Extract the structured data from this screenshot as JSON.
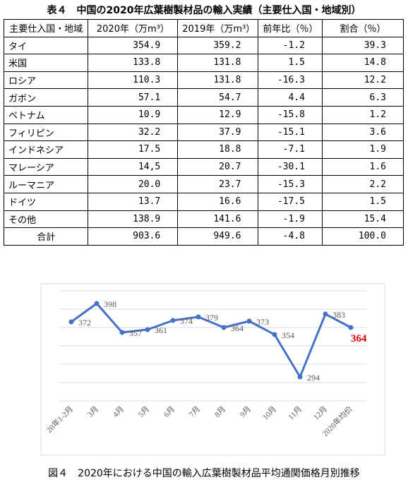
{
  "table": {
    "title": "表４　中国の2020年広葉樹製材品の輸入実績（主要仕入国・地域別）",
    "header": [
      "主要仕入国・地域",
      "2020年（万m³）",
      "2019年（万m³）",
      "前年比（％）",
      "割合（％）"
    ],
    "rows": [
      [
        "タイ",
        "354.9",
        "359.2",
        "-1.2",
        "39.3"
      ],
      [
        "米国",
        "133.8",
        "131.8",
        "1.5",
        "14.8"
      ],
      [
        "ロシア",
        "110.3",
        "131.8",
        "-16.3",
        "12.2"
      ],
      [
        "ガボン",
        "57.1",
        "54.7",
        "4.4",
        "6.3"
      ],
      [
        "ベトナム",
        "10.9",
        "12.9",
        "-15.8",
        "1.2"
      ],
      [
        "フィリピン",
        "32.2",
        "37.9",
        "-15.1",
        "3.6"
      ],
      [
        "インドネシア",
        "17.5",
        "18.8",
        "-7.1",
        "1.9"
      ],
      [
        "マレーシア",
        "14,5",
        "20.7",
        "-30.1",
        "1.6"
      ],
      [
        "ルーマニア",
        "20.0",
        "23.7",
        "-15.3",
        "2.2"
      ],
      [
        "ドイツ",
        "13.7",
        "16.6",
        "-17.5",
        "1.5"
      ],
      [
        "その他",
        "138.9",
        "141.6",
        "-1.9",
        "15.4"
      ],
      [
        "合計",
        "903.6",
        "949.6",
        "-4.8",
        "100.0"
      ]
    ]
  },
  "chart_data": {
    "type": "line",
    "caption": "図４　2020年における中国の輸入広葉樹製材品平均通関価格月別推移",
    "categories": [
      "20年1-2月",
      "3月",
      "4月",
      "5月",
      "6月",
      "7月",
      "8月",
      "9月",
      "10月",
      "11月",
      "12月",
      "2020年均价"
    ],
    "values": [
      372,
      398,
      357,
      361,
      374,
      379,
      364,
      373,
      354,
      294,
      383,
      364
    ],
    "color": "#4472c4",
    "label_colors": [
      "#595959",
      "#595959",
      "#595959",
      "#595959",
      "#595959",
      "#595959",
      "#595959",
      "#595959",
      "#595959",
      "#595959",
      "#595959",
      "#e00000"
    ],
    "ylim": [
      260,
      416
    ],
    "yticks": [
      260,
      286,
      312,
      338,
      364,
      390,
      416
    ],
    "grid": true
  }
}
